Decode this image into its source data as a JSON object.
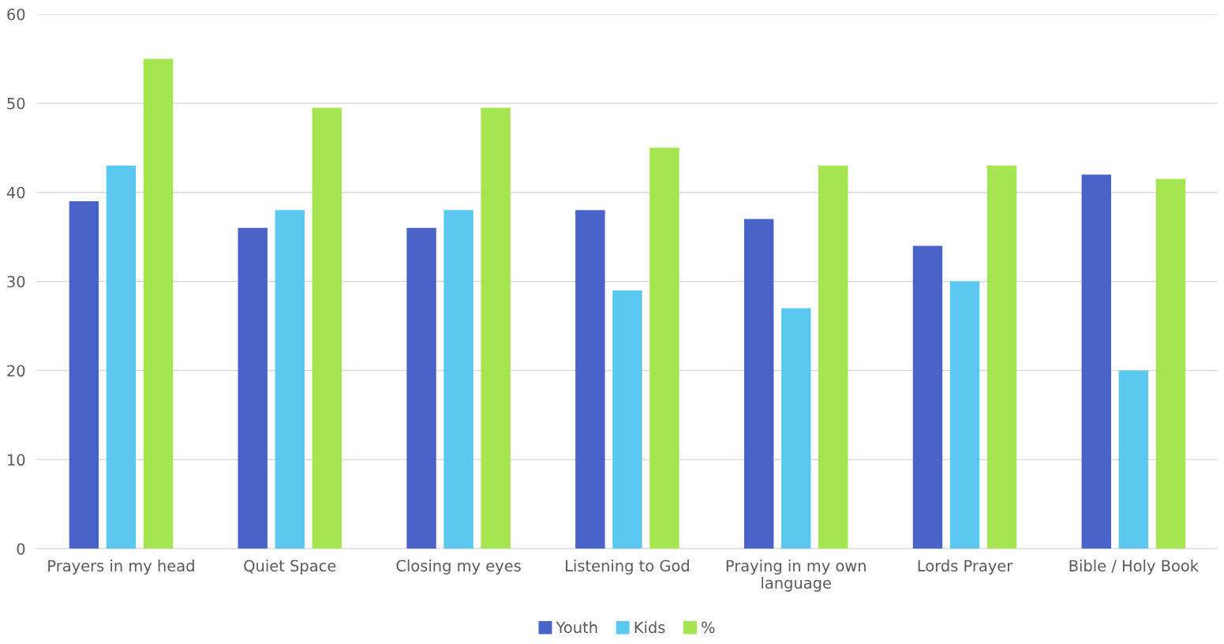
{
  "chart_data": {
    "type": "bar",
    "categories": [
      "Prayers in my head",
      "Quiet Space",
      "Closing my eyes",
      "Listening to God",
      "Praying in my own\nlanguage",
      "Lords Prayer",
      "Bible / Holy Book"
    ],
    "series": [
      {
        "name": "Youth",
        "color": "#4a63c8",
        "values": [
          39,
          36,
          36,
          38,
          37,
          34,
          42
        ]
      },
      {
        "name": "Kids",
        "color": "#5bc8f0",
        "values": [
          43,
          38,
          38,
          29,
          27,
          30,
          20
        ]
      },
      {
        "name": "%",
        "color": "#a5e650",
        "values": [
          55,
          49.5,
          49.5,
          45,
          43,
          43,
          41.5
        ]
      }
    ],
    "ylim": [
      0,
      60
    ],
    "yticks": [
      0,
      10,
      20,
      30,
      40,
      50,
      60
    ],
    "grid": "y",
    "legend": "bottom"
  }
}
